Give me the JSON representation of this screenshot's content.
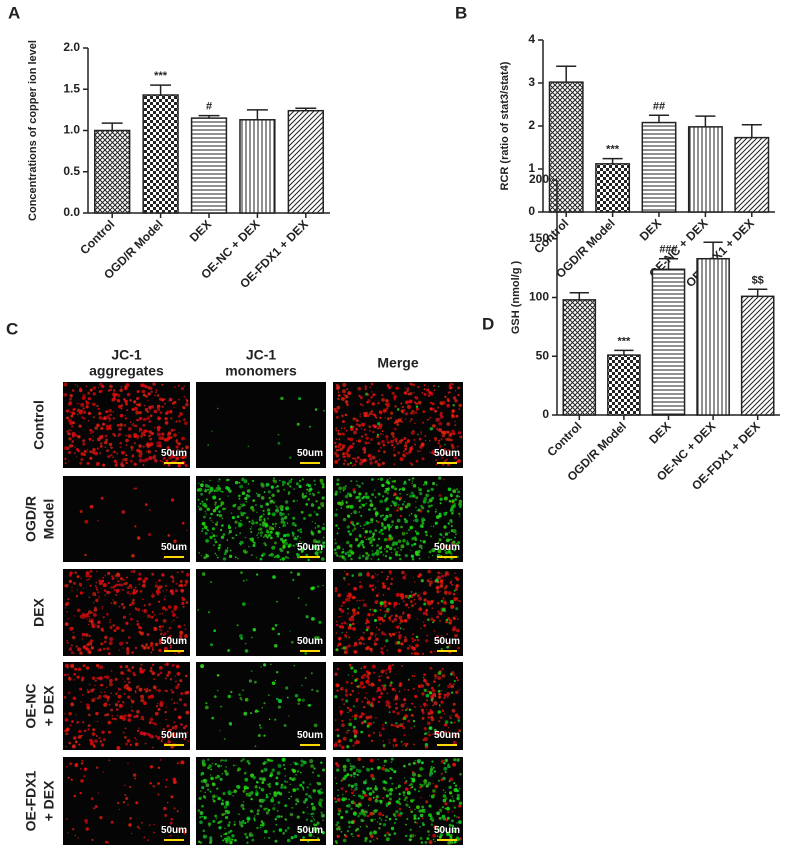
{
  "chart_data": [
    {
      "type": "bar",
      "panel": "A",
      "ylabel": "Concentrations of copper ion level",
      "categories": [
        "Control",
        "OGD/R Model",
        "DEX",
        "OE-NC + DEX",
        "OE-FDX1 + DEX"
      ],
      "values": [
        1.0,
        1.43,
        1.15,
        1.13,
        1.24
      ],
      "errors": [
        0.09,
        0.12,
        0.03,
        0.12,
        0.03
      ],
      "annotations": [
        null,
        "***",
        "#",
        null,
        null
      ],
      "patterns": [
        "crosshatch",
        "checker",
        "horizontal",
        "vertical",
        "diagonal"
      ],
      "ylim": [
        0,
        2
      ],
      "yticks": [
        {
          "value": 0,
          "label": "0.0"
        },
        0.5,
        {
          "value": 1,
          "label": "1.0"
        },
        1.5,
        {
          "value": 2,
          "label": "2.0"
        }
      ]
    },
    {
      "type": "bar",
      "panel": "B",
      "ylabel": "RCR (ratio of stat3/stat4)",
      "categories": [
        "Control",
        "OGD/R Model",
        "DEX",
        "OE-NC + DEX",
        "OE-FDX1 + DEX"
      ],
      "values": [
        3.02,
        1.12,
        2.08,
        1.98,
        1.73
      ],
      "errors": [
        0.37,
        0.12,
        0.17,
        0.25,
        0.3
      ],
      "annotations": [
        null,
        "***",
        "##",
        null,
        null
      ],
      "patterns": [
        "crosshatch",
        "checker",
        "horizontal",
        "vertical",
        "diagonal"
      ],
      "ylim": [
        0,
        4
      ],
      "yticks": [
        0,
        1,
        2,
        3,
        4
      ]
    },
    {
      "type": "bar",
      "panel": "D",
      "ylabel": "GSH (nmol/g )",
      "categories": [
        "Control",
        "OGD/R Model",
        "DEX",
        "OE-NC + DEX",
        "OE-FDX1 + DEX"
      ],
      "values": [
        98,
        51,
        124,
        133,
        101
      ],
      "errors": [
        6,
        4,
        9,
        14,
        6
      ],
      "annotations": [
        null,
        "***",
        "###",
        null,
        "$$"
      ],
      "patterns": [
        "crosshatch",
        "checker",
        "horizontal",
        "vertical",
        "diagonal"
      ],
      "ylim": [
        0,
        200
      ],
      "yticks": [
        0,
        50,
        100,
        150,
        200
      ]
    }
  ],
  "image_panel": {
    "panel": "C",
    "columns": [
      [
        "JC-1",
        "aggregates"
      ],
      [
        "JC-1",
        "monomers"
      ],
      [
        "Merge"
      ]
    ],
    "rows": [
      [
        "Control"
      ],
      [
        "OGD/R",
        "Model"
      ],
      [
        "DEX"
      ],
      [
        "OE-NC",
        "+ DEX"
      ],
      [
        "OE-FDX1",
        "+ DEX"
      ]
    ],
    "scale_bar": "50um"
  }
}
